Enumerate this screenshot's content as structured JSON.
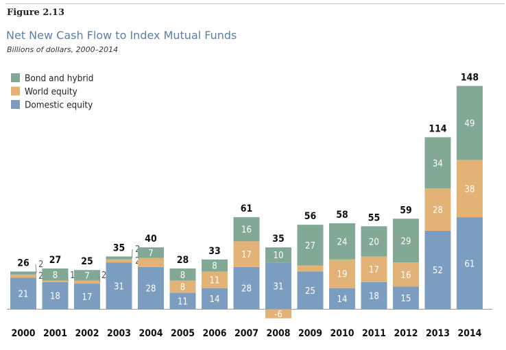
{
  "figure_label": "Figure 2.13",
  "title": "Net New Cash Flow to Index Mutual Funds",
  "subtitle": "Billions of dollars, 2000–2014",
  "colors": {
    "bond": "#82a896",
    "world": "#e2b277",
    "domestic": "#7b9dc0",
    "axis": "#999999"
  },
  "chart_data": {
    "type": "bar",
    "stacked": true,
    "categories": [
      "2000",
      "2001",
      "2002",
      "2003",
      "2004",
      "2005",
      "2006",
      "2007",
      "2008",
      "2009",
      "2010",
      "2011",
      "2012",
      "2013",
      "2014"
    ],
    "series": [
      {
        "name": "Domestic equity",
        "values": [
          21,
          18,
          17,
          31,
          28,
          11,
          14,
          28,
          31,
          25,
          14,
          18,
          15,
          52,
          61
        ]
      },
      {
        "name": "World equity",
        "values": [
          2,
          1,
          2,
          2,
          6,
          8,
          11,
          17,
          -6,
          4,
          19,
          17,
          16,
          28,
          38
        ]
      },
      {
        "name": "Bond and hybrid",
        "values": [
          2,
          8,
          7,
          2,
          7,
          8,
          8,
          16,
          10,
          27,
          24,
          20,
          29,
          34,
          49
        ]
      }
    ],
    "totals": [
      26,
      27,
      25,
      35,
      40,
      28,
      33,
      61,
      35,
      56,
      58,
      55,
      59,
      114,
      148
    ],
    "legend": [
      "Bond and hybrid",
      "World equity",
      "Domestic equity"
    ],
    "legend_position": "top-left",
    "ylim": [
      -7,
      150
    ],
    "grid": false
  }
}
